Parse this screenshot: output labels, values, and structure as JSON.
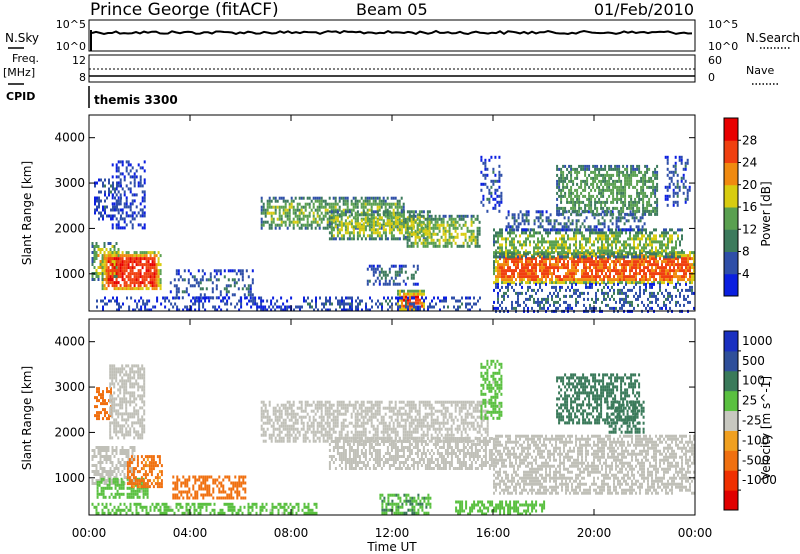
{
  "header": {
    "station": "Prince George (fitACF)",
    "beam": "Beam 05",
    "date": "01/Feb/2010"
  },
  "noise_panel": {
    "left_label": "N.Sky",
    "right_label": "N.Search",
    "left_ticks": [
      "10^5",
      "10^0"
    ],
    "right_ticks": [
      "10^5",
      "10^0"
    ]
  },
  "freq_panel": {
    "left_label_line1": "Freq.",
    "left_label_line2": "[MHz]",
    "left_ticks": [
      "12",
      "8"
    ],
    "right_label": "Nave",
    "right_ticks": [
      "60",
      "0"
    ]
  },
  "cpid_panel": {
    "label": "CPID",
    "program": "themis 3300"
  },
  "x_axis": {
    "label": "Time UT",
    "ticks": [
      "00:00",
      "04:00",
      "08:00",
      "12:00",
      "16:00",
      "20:00",
      "00:00"
    ]
  },
  "colors": {
    "power_scale": [
      "#0b1fe0",
      "#2f4fa8",
      "#3c7a5c",
      "#5aa050",
      "#d8cc10",
      "#f08a10",
      "#f04010",
      "#e80000"
    ],
    "velocity_scale": [
      "#1a30c0",
      "#2f4f9a",
      "#3a7a5a",
      "#5ac040",
      "#c8c8c0",
      "#f0a020",
      "#f07010",
      "#f03000",
      "#e00000"
    ],
    "ground_scatter": "#c0c0b8"
  },
  "chart_data": [
    {
      "type": "heatmap",
      "title": "",
      "xlabel": "",
      "ylabel": "Slant Range [km]",
      "x_range_hours": [
        0,
        24
      ],
      "ylim": [
        180,
        4500
      ],
      "y_ticks": [
        "1000",
        "2000",
        "3000",
        "4000"
      ],
      "colorbar": {
        "label": "Power [dB]",
        "ticks": [
          "4",
          "8",
          "12",
          "16",
          "20",
          "24",
          "28"
        ],
        "range": [
          0,
          32
        ]
      },
      "regions": [
        {
          "t0": 0.1,
          "t1": 1.2,
          "r0": 900,
          "r1": 1700,
          "level": 18
        },
        {
          "t0": 0.5,
          "t1": 2.8,
          "r0": 650,
          "r1": 1500,
          "level": 27
        },
        {
          "t0": 0.2,
          "t1": 1.3,
          "r0": 2200,
          "r1": 3100,
          "level": 6
        },
        {
          "t0": 0.9,
          "t1": 2.2,
          "r0": 2000,
          "r1": 3500,
          "level": 5
        },
        {
          "t0": 3.2,
          "t1": 6.5,
          "r0": 500,
          "r1": 1100,
          "level": 7
        },
        {
          "t0": 0.2,
          "t1": 8.0,
          "r0": 200,
          "r1": 500,
          "level": 5
        },
        {
          "t0": 6.8,
          "t1": 12.5,
          "r0": 2000,
          "r1": 2700,
          "level": 14
        },
        {
          "t0": 9.5,
          "t1": 13.5,
          "r0": 1800,
          "r1": 2400,
          "level": 17
        },
        {
          "t0": 12.5,
          "t1": 15.5,
          "r0": 1600,
          "r1": 2300,
          "level": 16
        },
        {
          "t0": 11.0,
          "t1": 13.0,
          "r0": 800,
          "r1": 1200,
          "level": 9
        },
        {
          "t0": 12.2,
          "t1": 13.3,
          "r0": 200,
          "r1": 650,
          "level": 26
        },
        {
          "t0": 8.0,
          "t1": 15.5,
          "r0": 200,
          "r1": 500,
          "level": 7
        },
        {
          "t0": 16.0,
          "t1": 24.0,
          "r0": 800,
          "r1": 1500,
          "level": 25
        },
        {
          "t0": 16.0,
          "t1": 23.5,
          "r0": 1400,
          "r1": 2000,
          "level": 15
        },
        {
          "t0": 16.5,
          "t1": 22.0,
          "r0": 2000,
          "r1": 2400,
          "level": 8
        },
        {
          "t0": 18.5,
          "t1": 22.5,
          "r0": 2300,
          "r1": 3400,
          "level": 13
        },
        {
          "t0": 15.5,
          "t1": 16.3,
          "r0": 2400,
          "r1": 3600,
          "level": 6
        },
        {
          "t0": 22.8,
          "t1": 23.8,
          "r0": 2500,
          "r1": 3600,
          "level": 6
        },
        {
          "t0": 16.0,
          "t1": 24.0,
          "r0": 200,
          "r1": 800,
          "level": 7
        }
      ]
    },
    {
      "type": "heatmap",
      "title": "",
      "xlabel": "Time UT",
      "ylabel": "Slant Range [km]",
      "x_range_hours": [
        0,
        24
      ],
      "ylim": [
        180,
        4500
      ],
      "y_ticks": [
        "1000",
        "2000",
        "3000",
        "4000"
      ],
      "colorbar": {
        "label": "Velocity [m s^-1]",
        "ticks": [
          "1000",
          "500",
          "100",
          "25",
          "-25",
          "-100",
          "-500",
          "-1000"
        ],
        "range": [
          -1200,
          1200
        ]
      },
      "regions": [
        {
          "t0": 0.1,
          "t1": 1.8,
          "r0": 900,
          "r1": 1700,
          "kind": "gs"
        },
        {
          "t0": 0.3,
          "t1": 2.3,
          "r0": 550,
          "r1": 1000,
          "v": 60
        },
        {
          "t0": 1.5,
          "t1": 2.9,
          "r0": 800,
          "r1": 1500,
          "v": -200
        },
        {
          "t0": 0.2,
          "t1": 0.9,
          "r0": 2300,
          "r1": 3000,
          "v": -300
        },
        {
          "t0": 0.8,
          "t1": 2.2,
          "r0": 1900,
          "r1": 3500,
          "kind": "gs"
        },
        {
          "t0": 3.3,
          "t1": 6.2,
          "r0": 550,
          "r1": 1050,
          "v": -300
        },
        {
          "t0": 6.8,
          "t1": 15.8,
          "r0": 1800,
          "r1": 2700,
          "kind": "gs"
        },
        {
          "t0": 9.5,
          "t1": 16.0,
          "r0": 1200,
          "r1": 1900,
          "kind": "gs"
        },
        {
          "t0": 11.5,
          "t1": 13.5,
          "r0": 200,
          "r1": 650,
          "v": 80
        },
        {
          "t0": 0.1,
          "t1": 9.0,
          "r0": 200,
          "r1": 450,
          "v": 60
        },
        {
          "t0": 16.0,
          "t1": 24.0,
          "r0": 650,
          "r1": 1950,
          "kind": "gs"
        },
        {
          "t0": 18.5,
          "t1": 21.8,
          "r0": 2200,
          "r1": 3300,
          "v": 300
        },
        {
          "t0": 20.5,
          "t1": 22.0,
          "r0": 2000,
          "r1": 2700,
          "v": 250
        },
        {
          "t0": 14.5,
          "t1": 18.0,
          "r0": 200,
          "r1": 500,
          "v": 60
        },
        {
          "t0": 15.5,
          "t1": 16.3,
          "r0": 2300,
          "r1": 3600,
          "v": 60
        }
      ]
    }
  ]
}
